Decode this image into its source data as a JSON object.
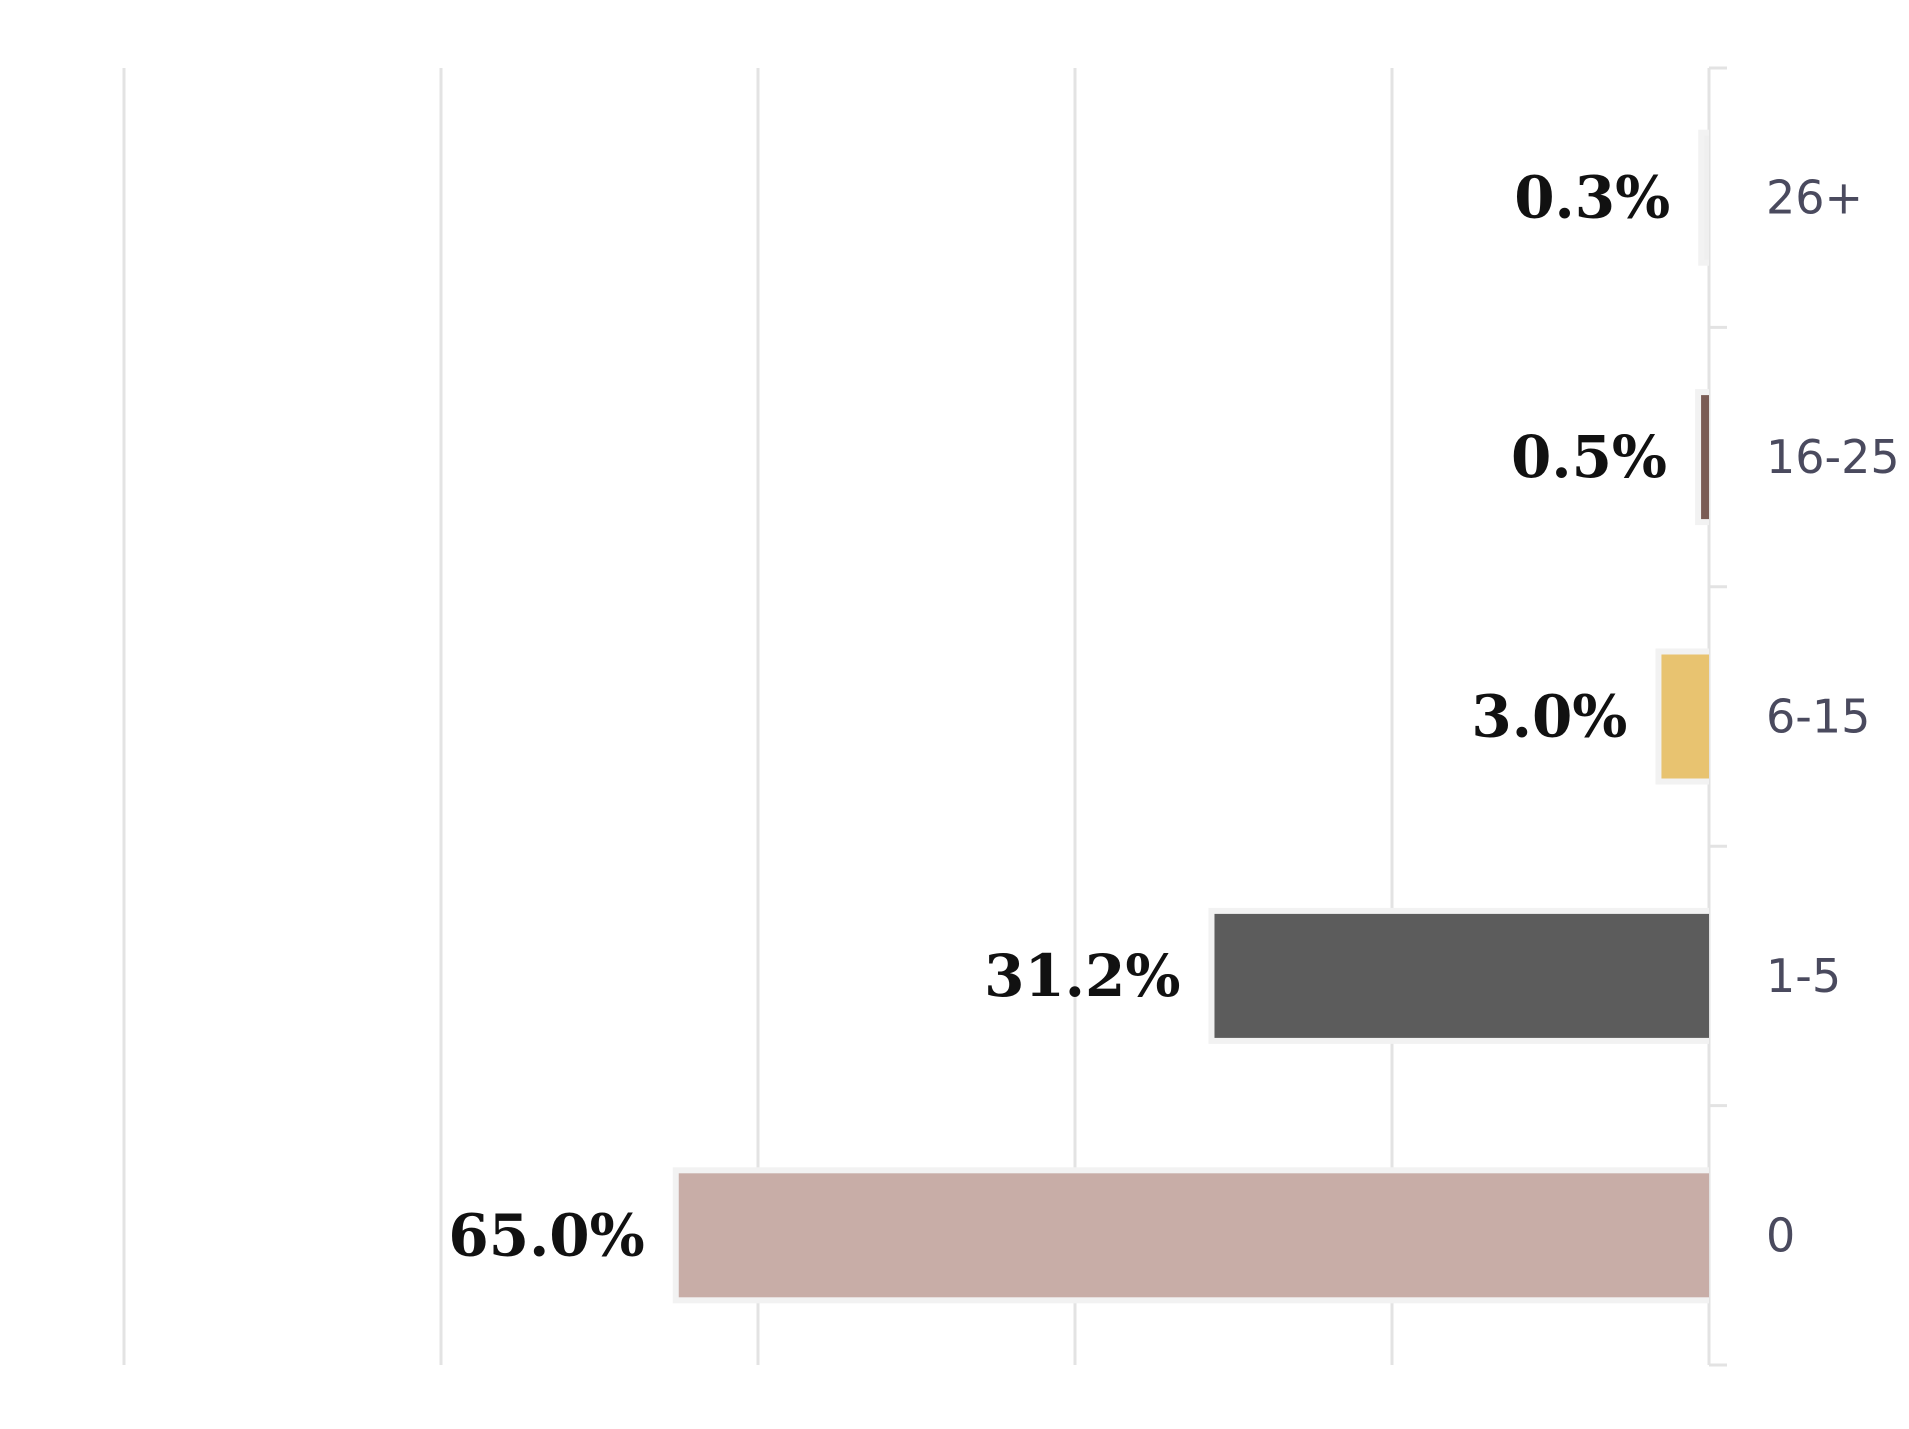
{
  "chart_data": {
    "type": "bar",
    "orientation": "horizontal",
    "direction": "right-to-left",
    "categories": [
      "26+",
      "16-25",
      "6-15",
      "1-5",
      "0"
    ],
    "values": [
      0.3,
      0.5,
      3.0,
      31.2,
      65.0
    ],
    "value_labels": [
      "0.3%",
      "0.5%",
      "3.0%",
      "31.2%",
      "65.0%"
    ],
    "title": "",
    "xlabel": "",
    "ylabel": "",
    "xlim": [
      0,
      100
    ],
    "grid": true,
    "legend": "none",
    "colors": [
      "#efefef",
      "#7a5c55",
      "#e8c370",
      "#5c5c5c",
      "#c8ada7"
    ],
    "bar_edge_color": "#f2f2f2",
    "grid_color": "#e3e3e3",
    "value_label_color": "#111111",
    "category_label_color": "#4a4a5e"
  }
}
